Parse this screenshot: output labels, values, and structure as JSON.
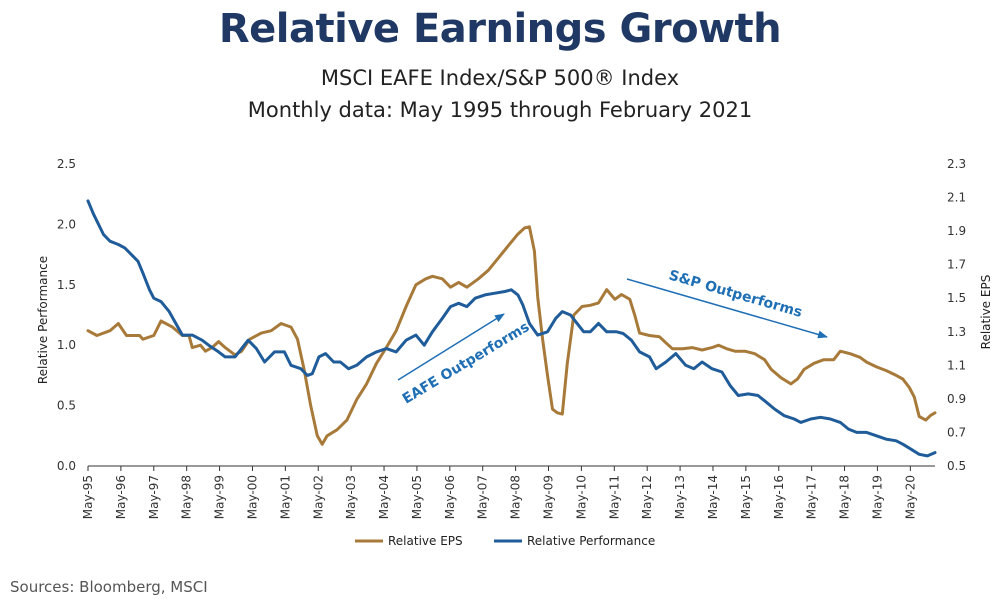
{
  "title": "Relative Earnings Growth",
  "subtitle_1": "MSCI EAFE Index/S&P 500® Index",
  "subtitle_2": "Monthly data: May 1995 through February 2021",
  "source": "Sources: Bloomberg, MSCI",
  "chart_data": {
    "type": "line",
    "ylabel_left": "Relative Performance",
    "ylabel_right": "Relative EPS",
    "ylim_left": [
      0,
      2.5
    ],
    "ylim_right": [
      0.5,
      2.3
    ],
    "yticks_left": [
      "0.0",
      "0.5",
      "1.0",
      "1.5",
      "2.0",
      "2.5"
    ],
    "yticks_right": [
      "0.5",
      "0.7",
      "0.9",
      "1.1",
      "1.3",
      "1.5",
      "1.7",
      "1.9",
      "2.1",
      "2.3"
    ],
    "xlim": [
      1995.33,
      2021.08
    ],
    "xtick_labels": [
      "May-95",
      "May-96",
      "May-97",
      "May-98",
      "May-99",
      "May-00",
      "May-01",
      "May-02",
      "May-03",
      "May-04",
      "May-05",
      "May-06",
      "May-07",
      "May-08",
      "May-09",
      "May-10",
      "May-11",
      "May-12",
      "May-13",
      "May-14",
      "May-15",
      "May-16",
      "May-17",
      "May-18",
      "May-19",
      "May-20"
    ],
    "grid": false,
    "legend": "bottom",
    "series": [
      {
        "name": "Relative EPS",
        "color": "#a87a3a",
        "axis": "left",
        "points": [
          [
            1995.33,
            1.12
          ],
          [
            1995.6,
            1.08
          ],
          [
            1996.0,
            1.12
          ],
          [
            1996.25,
            1.18
          ],
          [
            1996.5,
            1.08
          ],
          [
            1996.9,
            1.08
          ],
          [
            1997.0,
            1.05
          ],
          [
            1997.33,
            1.08
          ],
          [
            1997.55,
            1.2
          ],
          [
            1997.9,
            1.15
          ],
          [
            1998.2,
            1.08
          ],
          [
            1998.4,
            1.08
          ],
          [
            1998.5,
            0.98
          ],
          [
            1998.75,
            1.0
          ],
          [
            1998.9,
            0.95
          ],
          [
            1999.1,
            0.98
          ],
          [
            1999.3,
            1.03
          ],
          [
            1999.5,
            0.98
          ],
          [
            1999.8,
            0.92
          ],
          [
            2000.0,
            0.95
          ],
          [
            2000.25,
            1.05
          ],
          [
            2000.6,
            1.1
          ],
          [
            2000.9,
            1.12
          ],
          [
            2001.2,
            1.18
          ],
          [
            2001.5,
            1.15
          ],
          [
            2001.7,
            1.05
          ],
          [
            2001.9,
            0.8
          ],
          [
            2002.1,
            0.5
          ],
          [
            2002.3,
            0.25
          ],
          [
            2002.45,
            0.18
          ],
          [
            2002.6,
            0.25
          ],
          [
            2002.9,
            0.3
          ],
          [
            2003.2,
            0.38
          ],
          [
            2003.5,
            0.55
          ],
          [
            2003.8,
            0.68
          ],
          [
            2004.1,
            0.85
          ],
          [
            2004.4,
            0.98
          ],
          [
            2004.7,
            1.12
          ],
          [
            2005.0,
            1.32
          ],
          [
            2005.3,
            1.5
          ],
          [
            2005.6,
            1.55
          ],
          [
            2005.8,
            1.57
          ],
          [
            2006.1,
            1.55
          ],
          [
            2006.35,
            1.48
          ],
          [
            2006.6,
            1.52
          ],
          [
            2006.85,
            1.48
          ],
          [
            2007.2,
            1.55
          ],
          [
            2007.5,
            1.62
          ],
          [
            2007.8,
            1.72
          ],
          [
            2008.1,
            1.82
          ],
          [
            2008.4,
            1.92
          ],
          [
            2008.6,
            1.97
          ],
          [
            2008.75,
            1.98
          ],
          [
            2008.9,
            1.78
          ],
          [
            2009.0,
            1.4
          ],
          [
            2009.15,
            1.05
          ],
          [
            2009.3,
            0.75
          ],
          [
            2009.45,
            0.47
          ],
          [
            2009.6,
            0.44
          ],
          [
            2009.75,
            0.43
          ],
          [
            2009.9,
            0.85
          ],
          [
            2010.1,
            1.25
          ],
          [
            2010.35,
            1.32
          ],
          [
            2010.6,
            1.33
          ],
          [
            2010.85,
            1.35
          ],
          [
            2011.1,
            1.46
          ],
          [
            2011.35,
            1.38
          ],
          [
            2011.55,
            1.42
          ],
          [
            2011.8,
            1.38
          ],
          [
            2011.95,
            1.25
          ],
          [
            2012.1,
            1.1
          ],
          [
            2012.4,
            1.08
          ],
          [
            2012.7,
            1.07
          ],
          [
            2012.9,
            1.02
          ],
          [
            2013.1,
            0.97
          ],
          [
            2013.4,
            0.97
          ],
          [
            2013.7,
            0.98
          ],
          [
            2014.0,
            0.96
          ],
          [
            2014.3,
            0.98
          ],
          [
            2014.5,
            1.0
          ],
          [
            2014.75,
            0.97
          ],
          [
            2015.0,
            0.95
          ],
          [
            2015.3,
            0.95
          ],
          [
            2015.6,
            0.93
          ],
          [
            2015.9,
            0.88
          ],
          [
            2016.1,
            0.8
          ],
          [
            2016.4,
            0.73
          ],
          [
            2016.7,
            0.68
          ],
          [
            2016.9,
            0.72
          ],
          [
            2017.1,
            0.8
          ],
          [
            2017.4,
            0.85
          ],
          [
            2017.7,
            0.88
          ],
          [
            2018.0,
            0.88
          ],
          [
            2018.2,
            0.95
          ],
          [
            2018.5,
            0.93
          ],
          [
            2018.8,
            0.9
          ],
          [
            2019.0,
            0.86
          ],
          [
            2019.3,
            0.82
          ],
          [
            2019.6,
            0.79
          ],
          [
            2019.9,
            0.75
          ],
          [
            2020.1,
            0.72
          ],
          [
            2020.3,
            0.65
          ],
          [
            2020.45,
            0.57
          ],
          [
            2020.6,
            0.41
          ],
          [
            2020.8,
            0.38
          ],
          [
            2020.95,
            0.42
          ],
          [
            2021.08,
            0.44
          ]
        ]
      },
      {
        "name": "Relative Performance",
        "color": "#1f5c99",
        "axis": "right",
        "points": [
          [
            1995.33,
            2.08
          ],
          [
            1995.5,
            2.0
          ],
          [
            1995.8,
            1.88
          ],
          [
            1996.0,
            1.84
          ],
          [
            1996.25,
            1.82
          ],
          [
            1996.45,
            1.8
          ],
          [
            1996.7,
            1.75
          ],
          [
            1996.85,
            1.72
          ],
          [
            1997.0,
            1.65
          ],
          [
            1997.2,
            1.55
          ],
          [
            1997.33,
            1.5
          ],
          [
            1997.55,
            1.48
          ],
          [
            1997.8,
            1.42
          ],
          [
            1998.0,
            1.35
          ],
          [
            1998.2,
            1.28
          ],
          [
            1998.5,
            1.28
          ],
          [
            1998.8,
            1.25
          ],
          [
            1999.0,
            1.22
          ],
          [
            1999.3,
            1.18
          ],
          [
            1999.5,
            1.15
          ],
          [
            1999.8,
            1.15
          ],
          [
            2000.0,
            1.2
          ],
          [
            2000.2,
            1.25
          ],
          [
            2000.45,
            1.2
          ],
          [
            2000.7,
            1.12
          ],
          [
            2001.0,
            1.18
          ],
          [
            2001.3,
            1.18
          ],
          [
            2001.5,
            1.1
          ],
          [
            2001.8,
            1.08
          ],
          [
            2002.0,
            1.04
          ],
          [
            2002.15,
            1.05
          ],
          [
            2002.35,
            1.15
          ],
          [
            2002.55,
            1.17
          ],
          [
            2002.8,
            1.12
          ],
          [
            2003.0,
            1.12
          ],
          [
            2003.25,
            1.08
          ],
          [
            2003.5,
            1.1
          ],
          [
            2003.8,
            1.15
          ],
          [
            2004.1,
            1.18
          ],
          [
            2004.4,
            1.2
          ],
          [
            2004.7,
            1.18
          ],
          [
            2005.0,
            1.25
          ],
          [
            2005.3,
            1.28
          ],
          [
            2005.55,
            1.22
          ],
          [
            2005.8,
            1.3
          ],
          [
            2006.1,
            1.38
          ],
          [
            2006.35,
            1.45
          ],
          [
            2006.6,
            1.47
          ],
          [
            2006.85,
            1.45
          ],
          [
            2007.1,
            1.5
          ],
          [
            2007.4,
            1.52
          ],
          [
            2007.7,
            1.53
          ],
          [
            2008.0,
            1.54
          ],
          [
            2008.2,
            1.55
          ],
          [
            2008.4,
            1.52
          ],
          [
            2008.55,
            1.46
          ],
          [
            2008.75,
            1.35
          ],
          [
            2009.0,
            1.28
          ],
          [
            2009.3,
            1.3
          ],
          [
            2009.55,
            1.38
          ],
          [
            2009.75,
            1.42
          ],
          [
            2010.0,
            1.4
          ],
          [
            2010.2,
            1.35
          ],
          [
            2010.4,
            1.3
          ],
          [
            2010.6,
            1.3
          ],
          [
            2010.85,
            1.35
          ],
          [
            2011.1,
            1.3
          ],
          [
            2011.4,
            1.3
          ],
          [
            2011.6,
            1.29
          ],
          [
            2011.85,
            1.25
          ],
          [
            2012.1,
            1.18
          ],
          [
            2012.4,
            1.15
          ],
          [
            2012.6,
            1.08
          ],
          [
            2012.9,
            1.12
          ],
          [
            2013.2,
            1.17
          ],
          [
            2013.5,
            1.1
          ],
          [
            2013.75,
            1.08
          ],
          [
            2014.0,
            1.12
          ],
          [
            2014.3,
            1.08
          ],
          [
            2014.6,
            1.06
          ],
          [
            2014.85,
            0.98
          ],
          [
            2015.1,
            0.92
          ],
          [
            2015.4,
            0.93
          ],
          [
            2015.7,
            0.92
          ],
          [
            2015.95,
            0.88
          ],
          [
            2016.2,
            0.84
          ],
          [
            2016.5,
            0.8
          ],
          [
            2016.8,
            0.78
          ],
          [
            2017.0,
            0.76
          ],
          [
            2017.3,
            0.78
          ],
          [
            2017.6,
            0.79
          ],
          [
            2017.9,
            0.78
          ],
          [
            2018.2,
            0.76
          ],
          [
            2018.45,
            0.72
          ],
          [
            2018.7,
            0.7
          ],
          [
            2019.0,
            0.7
          ],
          [
            2019.3,
            0.68
          ],
          [
            2019.6,
            0.66
          ],
          [
            2019.9,
            0.65
          ],
          [
            2020.1,
            0.63
          ],
          [
            2020.35,
            0.6
          ],
          [
            2020.6,
            0.57
          ],
          [
            2020.85,
            0.56
          ],
          [
            2021.08,
            0.58
          ]
        ]
      }
    ],
    "annotations": [
      {
        "text": "EAFE Outperforms",
        "direction": "up"
      },
      {
        "text": "S&P Outperforms",
        "direction": "down"
      }
    ]
  }
}
